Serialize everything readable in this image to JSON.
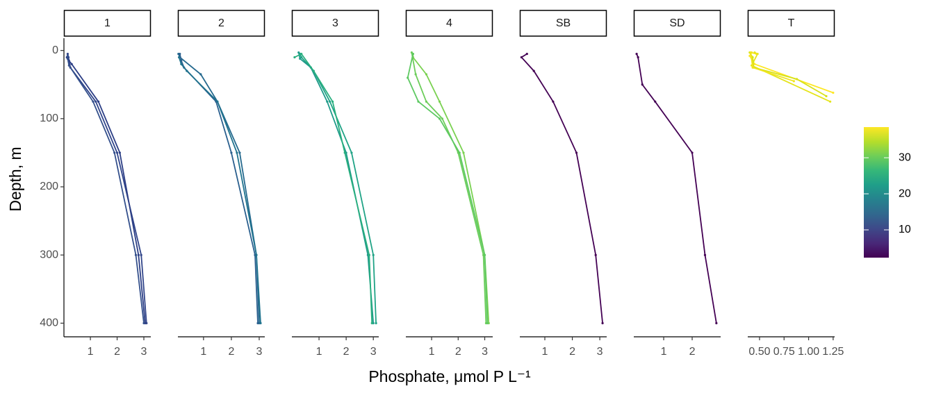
{
  "chart_data": {
    "type": "line",
    "x_label": "Phosphate, μmol P L⁻¹",
    "y_label": "Depth, m",
    "ylim": [
      -18,
      420
    ],
    "y_reversed": true,
    "yticks": [
      0,
      100,
      200,
      300,
      400
    ],
    "facets": [
      {
        "label": "1",
        "xlim": [
          0.01,
          3.26
        ],
        "xticks": [
          1,
          2,
          3
        ],
        "series": [
          {
            "color": "#31458a",
            "x": [
              0.15,
              0.18,
              0.25,
              1.2,
              2.0,
              2.9,
              3.1
            ],
            "y": [
              5,
              10,
              25,
              75,
              150,
              300,
              400
            ]
          },
          {
            "color": "#2c3e85",
            "x": [
              0.12,
              0.2,
              0.3,
              1.3,
              2.1,
              2.8,
              3.05
            ],
            "y": [
              10,
              15,
              20,
              75,
              150,
              300,
              400
            ]
          },
          {
            "color": "#34508c",
            "x": [
              0.15,
              0.15,
              0.2,
              1.1,
              1.9,
              2.7,
              3.0
            ],
            "y": [
              8,
              12,
              22,
              75,
              150,
              300,
              400
            ]
          }
        ]
      },
      {
        "label": "2",
        "xlim": [
          0.08,
          3.2
        ],
        "xticks": [
          1,
          2,
          3
        ],
        "series": [
          {
            "color": "#25698e",
            "x": [
              0.1,
              0.15,
              0.9,
              1.5,
              2.3,
              2.9,
              3.0
            ],
            "y": [
              5,
              10,
              35,
              75,
              150,
              300,
              400
            ]
          },
          {
            "color": "#2a5f8e",
            "x": [
              0.15,
              0.2,
              0.3,
              1.45,
              2.0,
              2.85,
              2.95
            ],
            "y": [
              5,
              15,
              25,
              75,
              150,
              300,
              400
            ]
          },
          {
            "color": "#20738e",
            "x": [
              0.12,
              0.2,
              0.4,
              1.5,
              2.2,
              2.9,
              3.05
            ],
            "y": [
              10,
              20,
              30,
              75,
              150,
              300,
              400
            ]
          }
        ]
      },
      {
        "label": "3",
        "xlim": [
          0.0,
          3.2
        ],
        "xticks": [
          1,
          2,
          3
        ],
        "series": [
          {
            "color": "#20a386",
            "x": [
              0.3,
              0.35,
              0.8,
              1.4,
              2.2,
              3.0,
              3.1
            ],
            "y": [
              5,
              10,
              30,
              75,
              150,
              300,
              400
            ]
          },
          {
            "color": "#1f9a8a",
            "x": [
              0.25,
              0.3,
              0.7,
              1.3,
              2.0,
              2.8,
              3.0
            ],
            "y": [
              3,
              12,
              25,
              75,
              150,
              300,
              400
            ]
          },
          {
            "color": "#29af7f",
            "x": [
              0.1,
              0.35,
              0.8,
              1.5,
              1.95,
              2.85,
              2.95
            ],
            "y": [
              10,
              5,
              30,
              75,
              150,
              300,
              400
            ]
          }
        ]
      },
      {
        "label": "4",
        "xlim": [
          0.03,
          3.3
        ],
        "xticks": [
          1,
          2,
          3
        ],
        "series": [
          {
            "color": "#7ad151",
            "x": [
              0.3,
              0.3,
              0.8,
              1.3,
              2.2,
              3.0,
              3.15
            ],
            "y": [
              5,
              10,
              35,
              75,
              150,
              300,
              400
            ]
          },
          {
            "color": "#6ccd5a",
            "x": [
              0.25,
              0.4,
              0.8,
              1.4,
              2.0,
              2.95,
              3.05
            ],
            "y": [
              3,
              35,
              75,
              100,
              150,
              300,
              400
            ]
          },
          {
            "color": "#5ec962",
            "x": [
              0.3,
              0.1,
              0.5,
              1.3,
              2.05,
              3.0,
              3.1
            ],
            "y": [
              5,
              40,
              75,
              100,
              150,
              300,
              400
            ]
          }
        ]
      },
      {
        "label": "SB",
        "xlim": [
          0.09,
          3.25
        ],
        "xticks": [
          1,
          2,
          3
        ],
        "series": [
          {
            "color": "#440154",
            "x": [
              0.35,
              0.15,
              0.6,
              1.3,
              2.15,
              2.85,
              3.1
            ],
            "y": [
              5,
              10,
              30,
              75,
              150,
              300,
              400
            ]
          }
        ]
      },
      {
        "label": "SD",
        "xlim": [
          -0.05,
          3.0
        ],
        "xticks": [
          1,
          2
        ],
        "series": [
          {
            "color": "#440154",
            "x": [
              0.05,
              0.1,
              0.25,
              0.7,
              2.0,
              2.45,
              2.85
            ],
            "y": [
              5,
              10,
              50,
              75,
              150,
              300,
              400
            ]
          }
        ]
      },
      {
        "label": "T",
        "xlim": [
          0.38,
          1.265
        ],
        "xticks": [
          {
            "value": 0.5,
            "label": "0.50"
          },
          {
            "value": 0.75,
            "label": "0.75"
          },
          {
            "value": 1.0,
            "label": "1.00"
          },
          {
            "value": 1.25,
            "label": "1.25"
          }
        ],
        "series": [
          {
            "color": "#fde725",
            "x": [
              0.42,
              0.4,
              0.45,
              1.25
            ],
            "y": [
              3,
              8,
              20,
              62
            ]
          },
          {
            "color": "#e5e419",
            "x": [
              0.45,
              0.48,
              0.42,
              1.22
            ],
            "y": [
              3,
              5,
              22,
              75
            ]
          },
          {
            "color": "#d8e219",
            "x": [
              0.4,
              0.43,
              0.44,
              0.88,
              1.18
            ],
            "y": [
              3,
              10,
              25,
              42,
              67
            ]
          },
          {
            "color": "#f1e51d",
            "x": [
              0.47,
              0.41,
              0.43,
              0.85
            ],
            "y": [
              5,
              3,
              25,
              45
            ]
          }
        ]
      }
    ],
    "colorbar": {
      "lim": [
        2.3,
        38.5
      ],
      "ticks": [
        10,
        20,
        30
      ],
      "colors": [
        "#440154",
        "#482878",
        "#3e4989",
        "#31688e",
        "#26828e",
        "#1f9e89",
        "#35b779",
        "#6ece58",
        "#b5de2b",
        "#fde725"
      ]
    }
  }
}
